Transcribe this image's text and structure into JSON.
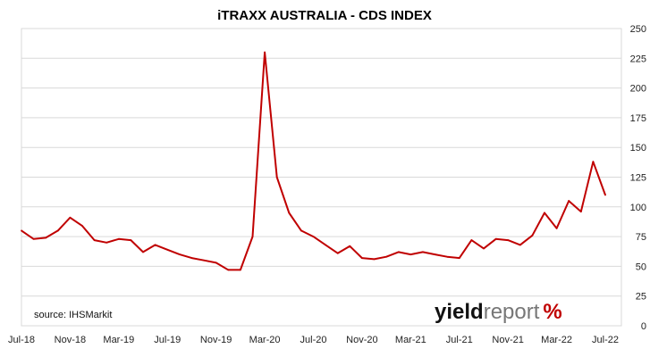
{
  "chart_data": {
    "type": "line",
    "title": "iTRAXX AUSTRALIA - CDS INDEX",
    "xlabel": "",
    "ylabel": "",
    "ylim": [
      0,
      250
    ],
    "y_ticks": [
      0,
      25,
      50,
      75,
      100,
      125,
      150,
      175,
      200,
      225,
      250
    ],
    "y_axis_side": "right",
    "x_ticks": [
      "Jul-18",
      "Nov-18",
      "Mar-19",
      "Jul-19",
      "Nov-19",
      "Mar-20",
      "Jul-20",
      "Nov-20",
      "Mar-21",
      "Jul-21",
      "Nov-21",
      "Mar-22",
      "Jul-22"
    ],
    "grid": "horizontal",
    "legend": "none",
    "line_color": "#c00000",
    "x": [
      "Jul-18",
      "Aug-18",
      "Sep-18",
      "Oct-18",
      "Nov-18",
      "Dec-18",
      "Jan-19",
      "Feb-19",
      "Mar-19",
      "Apr-19",
      "May-19",
      "Jun-19",
      "Jul-19",
      "Aug-19",
      "Sep-19",
      "Oct-19",
      "Nov-19",
      "Dec-19",
      "Jan-20",
      "Feb-20",
      "Mar-20",
      "Apr-20",
      "May-20",
      "Jun-20",
      "Jul-20",
      "Aug-20",
      "Sep-20",
      "Oct-20",
      "Nov-20",
      "Dec-20",
      "Jan-21",
      "Feb-21",
      "Mar-21",
      "Apr-21",
      "May-21",
      "Jun-21",
      "Jul-21",
      "Aug-21",
      "Sep-21",
      "Oct-21",
      "Nov-21",
      "Dec-21",
      "Jan-22",
      "Feb-22",
      "Mar-22",
      "Apr-22",
      "May-22",
      "Jun-22",
      "Jul-22"
    ],
    "series": [
      {
        "values": [
          80,
          73,
          74,
          80,
          91,
          84,
          72,
          70,
          73,
          72,
          62,
          68,
          64,
          60,
          57,
          55,
          53,
          47,
          47,
          75,
          230,
          125,
          95,
          80,
          75,
          68,
          61,
          67,
          57,
          56,
          58,
          62,
          60,
          62,
          60,
          58,
          57,
          72,
          65,
          73,
          72,
          68,
          76,
          95,
          82,
          105,
          96,
          138,
          110
        ]
      }
    ]
  },
  "source": "source: IHSMarkit",
  "logo": {
    "yield": "yield",
    "report": "report",
    "pct": "%"
  }
}
